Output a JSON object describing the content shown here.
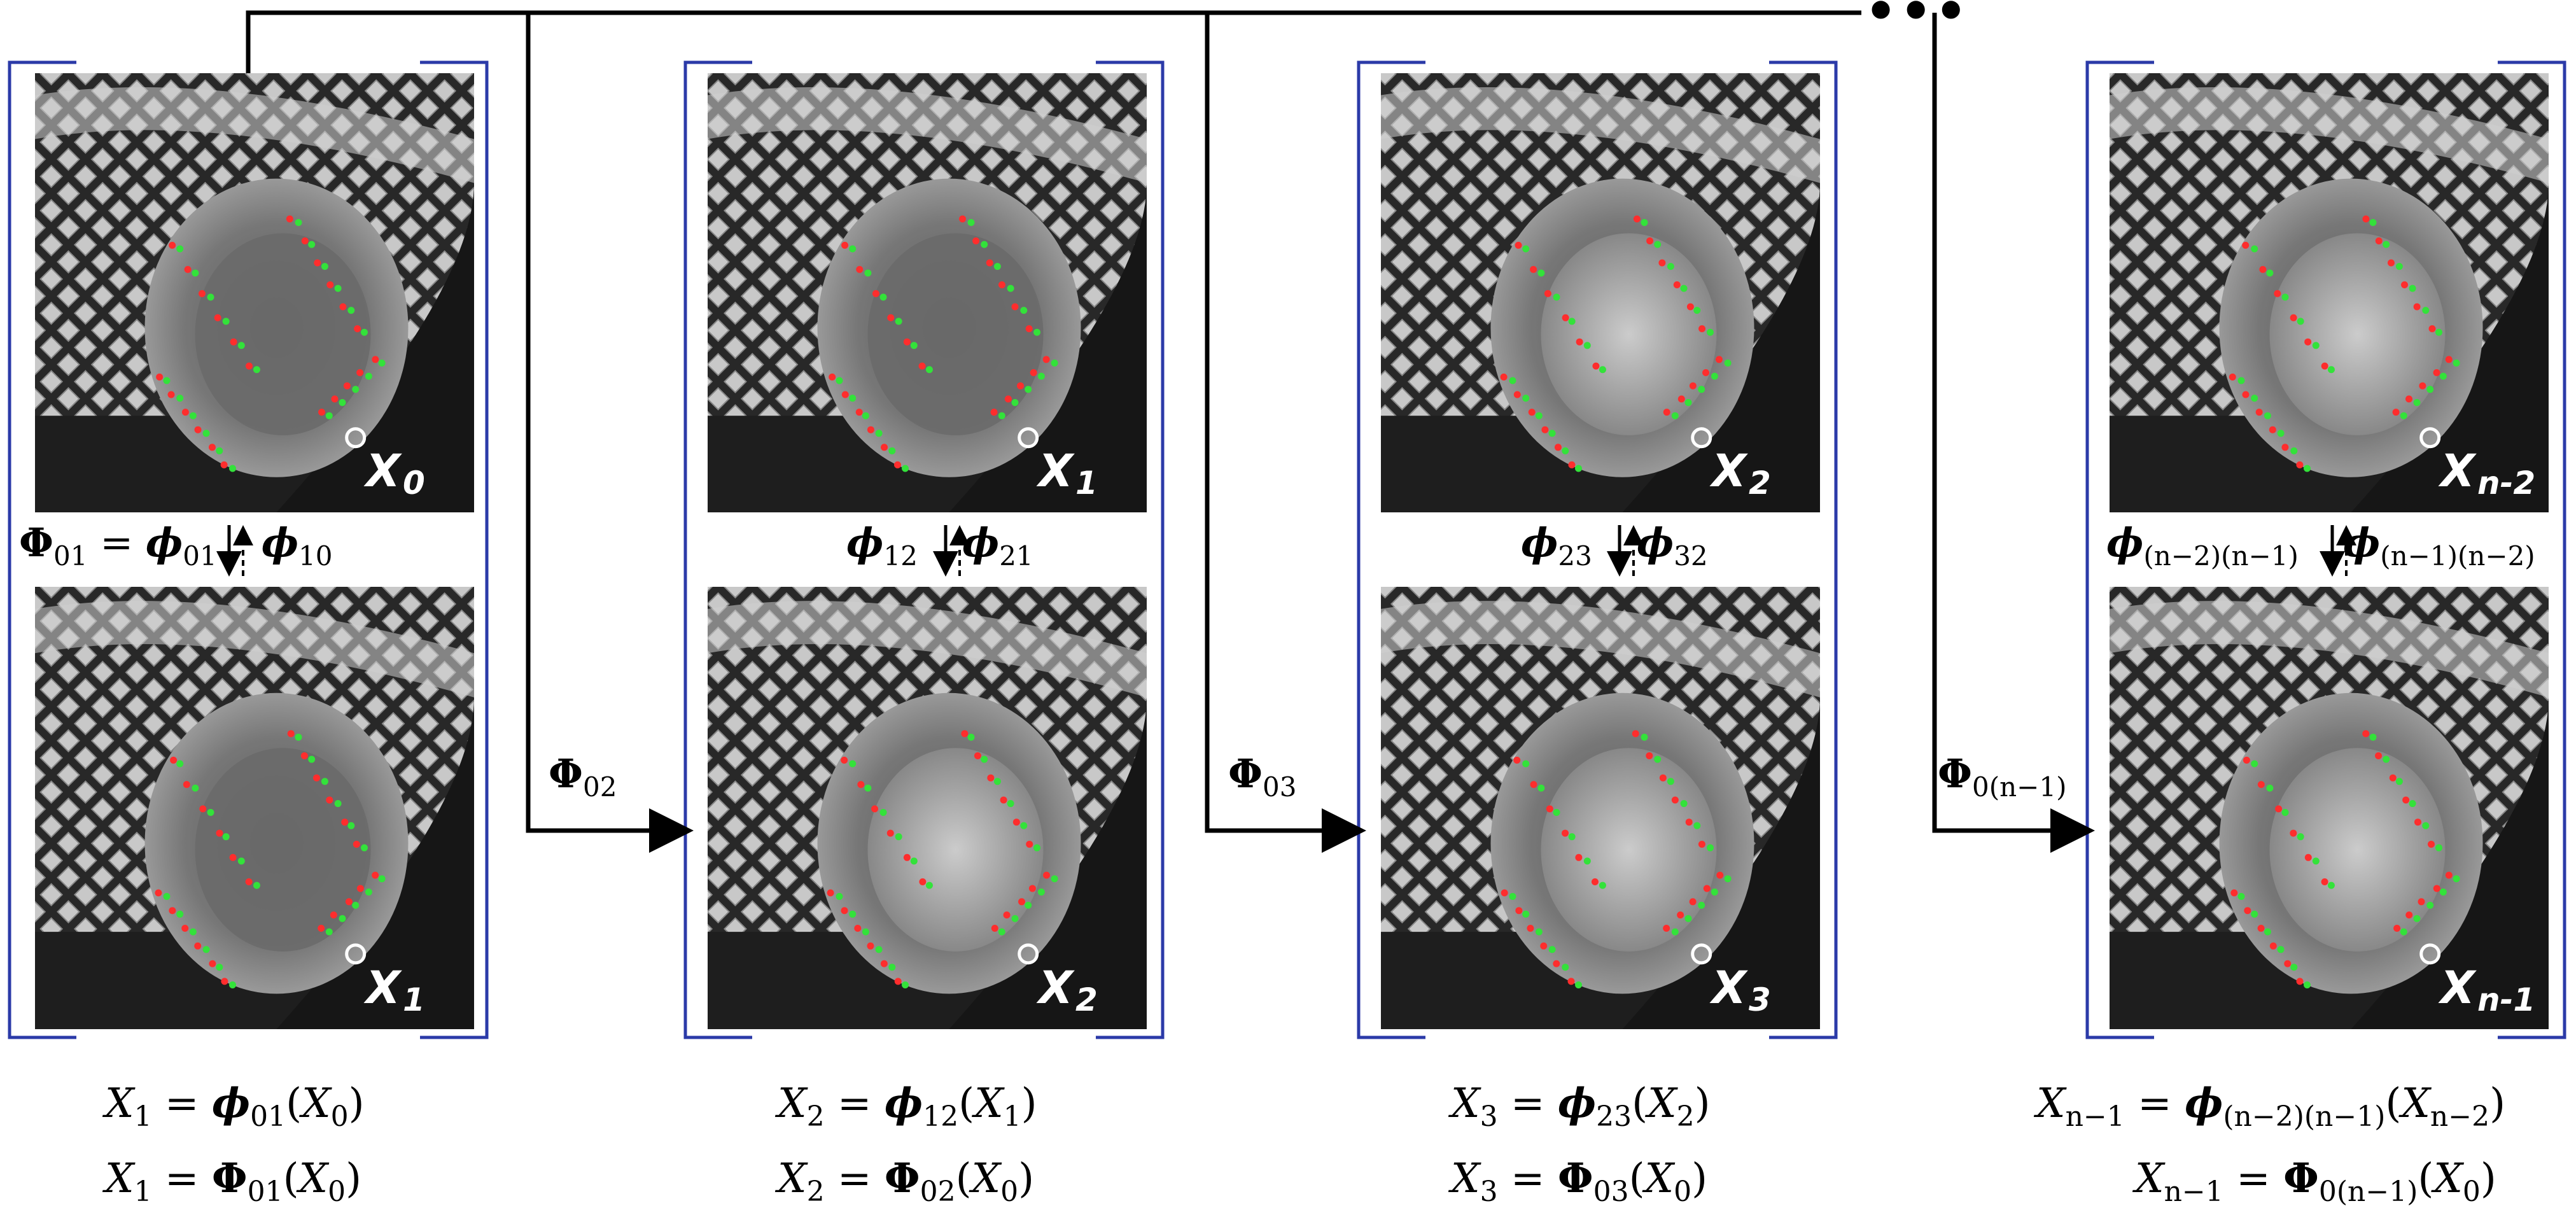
{
  "accent_colors": {
    "bracket": "#2b3aa8",
    "landmark_red": "#ff2d2d",
    "landmark_green": "#33e23a",
    "arrow": "#000000",
    "frame_label": "#ffffff"
  },
  "columns": [
    {
      "top_frame": {
        "base": "X",
        "sub": "0"
      },
      "bottom_frame": {
        "base": "X",
        "sub": "1"
      },
      "pair_op": {
        "prefix": "Φ",
        "prefix_sub": "01",
        "eq": "=",
        "fwd": "ϕ",
        "fwd_sub": "01",
        "bwd": "ϕ",
        "bwd_sub": "10"
      },
      "composed_op": null,
      "eq1": {
        "lhs": "X",
        "lhs_sub": "1",
        "op": "ϕ",
        "op_sub": "01",
        "arg": "X",
        "arg_sub": "0"
      },
      "eq2": {
        "lhs": "X",
        "lhs_sub": "1",
        "op": "Φ",
        "op_sub": "01",
        "arg": "X",
        "arg_sub": "0"
      }
    },
    {
      "top_frame": {
        "base": "X",
        "sub": "1"
      },
      "bottom_frame": {
        "base": "X",
        "sub": "2"
      },
      "pair_op": {
        "prefix": "",
        "prefix_sub": "",
        "eq": "",
        "fwd": "ϕ",
        "fwd_sub": "12",
        "bwd": "ϕ",
        "bwd_sub": "21"
      },
      "composed_op": {
        "sym": "Φ",
        "sub": "02"
      },
      "eq1": {
        "lhs": "X",
        "lhs_sub": "2",
        "op": "ϕ",
        "op_sub": "12",
        "arg": "X",
        "arg_sub": "1"
      },
      "eq2": {
        "lhs": "X",
        "lhs_sub": "2",
        "op": "Φ",
        "op_sub": "02",
        "arg": "X",
        "arg_sub": "0"
      }
    },
    {
      "top_frame": {
        "base": "X",
        "sub": "2"
      },
      "bottom_frame": {
        "base": "X",
        "sub": "3"
      },
      "pair_op": {
        "prefix": "",
        "prefix_sub": "",
        "eq": "",
        "fwd": "ϕ",
        "fwd_sub": "23",
        "bwd": "ϕ",
        "bwd_sub": "32"
      },
      "composed_op": {
        "sym": "Φ",
        "sub": "03"
      },
      "eq1": {
        "lhs": "X",
        "lhs_sub": "3",
        "op": "ϕ",
        "op_sub": "23",
        "arg": "X",
        "arg_sub": "2"
      },
      "eq2": {
        "lhs": "X",
        "lhs_sub": "3",
        "op": "Φ",
        "op_sub": "03",
        "arg": "X",
        "arg_sub": "0"
      }
    },
    {
      "top_frame": {
        "base": "X",
        "sub": "n-2"
      },
      "bottom_frame": {
        "base": "X",
        "sub": "n-1"
      },
      "pair_op": {
        "prefix": "",
        "prefix_sub": "",
        "eq": "",
        "fwd": "ϕ",
        "fwd_sub": "(n−2)(n−1)",
        "bwd": "ϕ",
        "bwd_sub": "(n−1)(n−2)"
      },
      "composed_op": {
        "sym": "Φ",
        "sub": "0(n−1)"
      },
      "eq1": {
        "lhs": "X",
        "lhs_sub": "n−1",
        "op": "ϕ",
        "op_sub": "(n−2)(n−1)",
        "arg": "X",
        "arg_sub": "n−2"
      },
      "eq2": {
        "lhs": "X",
        "lhs_sub": "n−1",
        "op": "Φ",
        "op_sub": "0(n−1)",
        "arg": "X",
        "arg_sub": "0"
      }
    }
  ],
  "continuation": "•••",
  "symbols": {
    "eq": "=",
    "lparen": "(",
    "rparen": ")"
  }
}
